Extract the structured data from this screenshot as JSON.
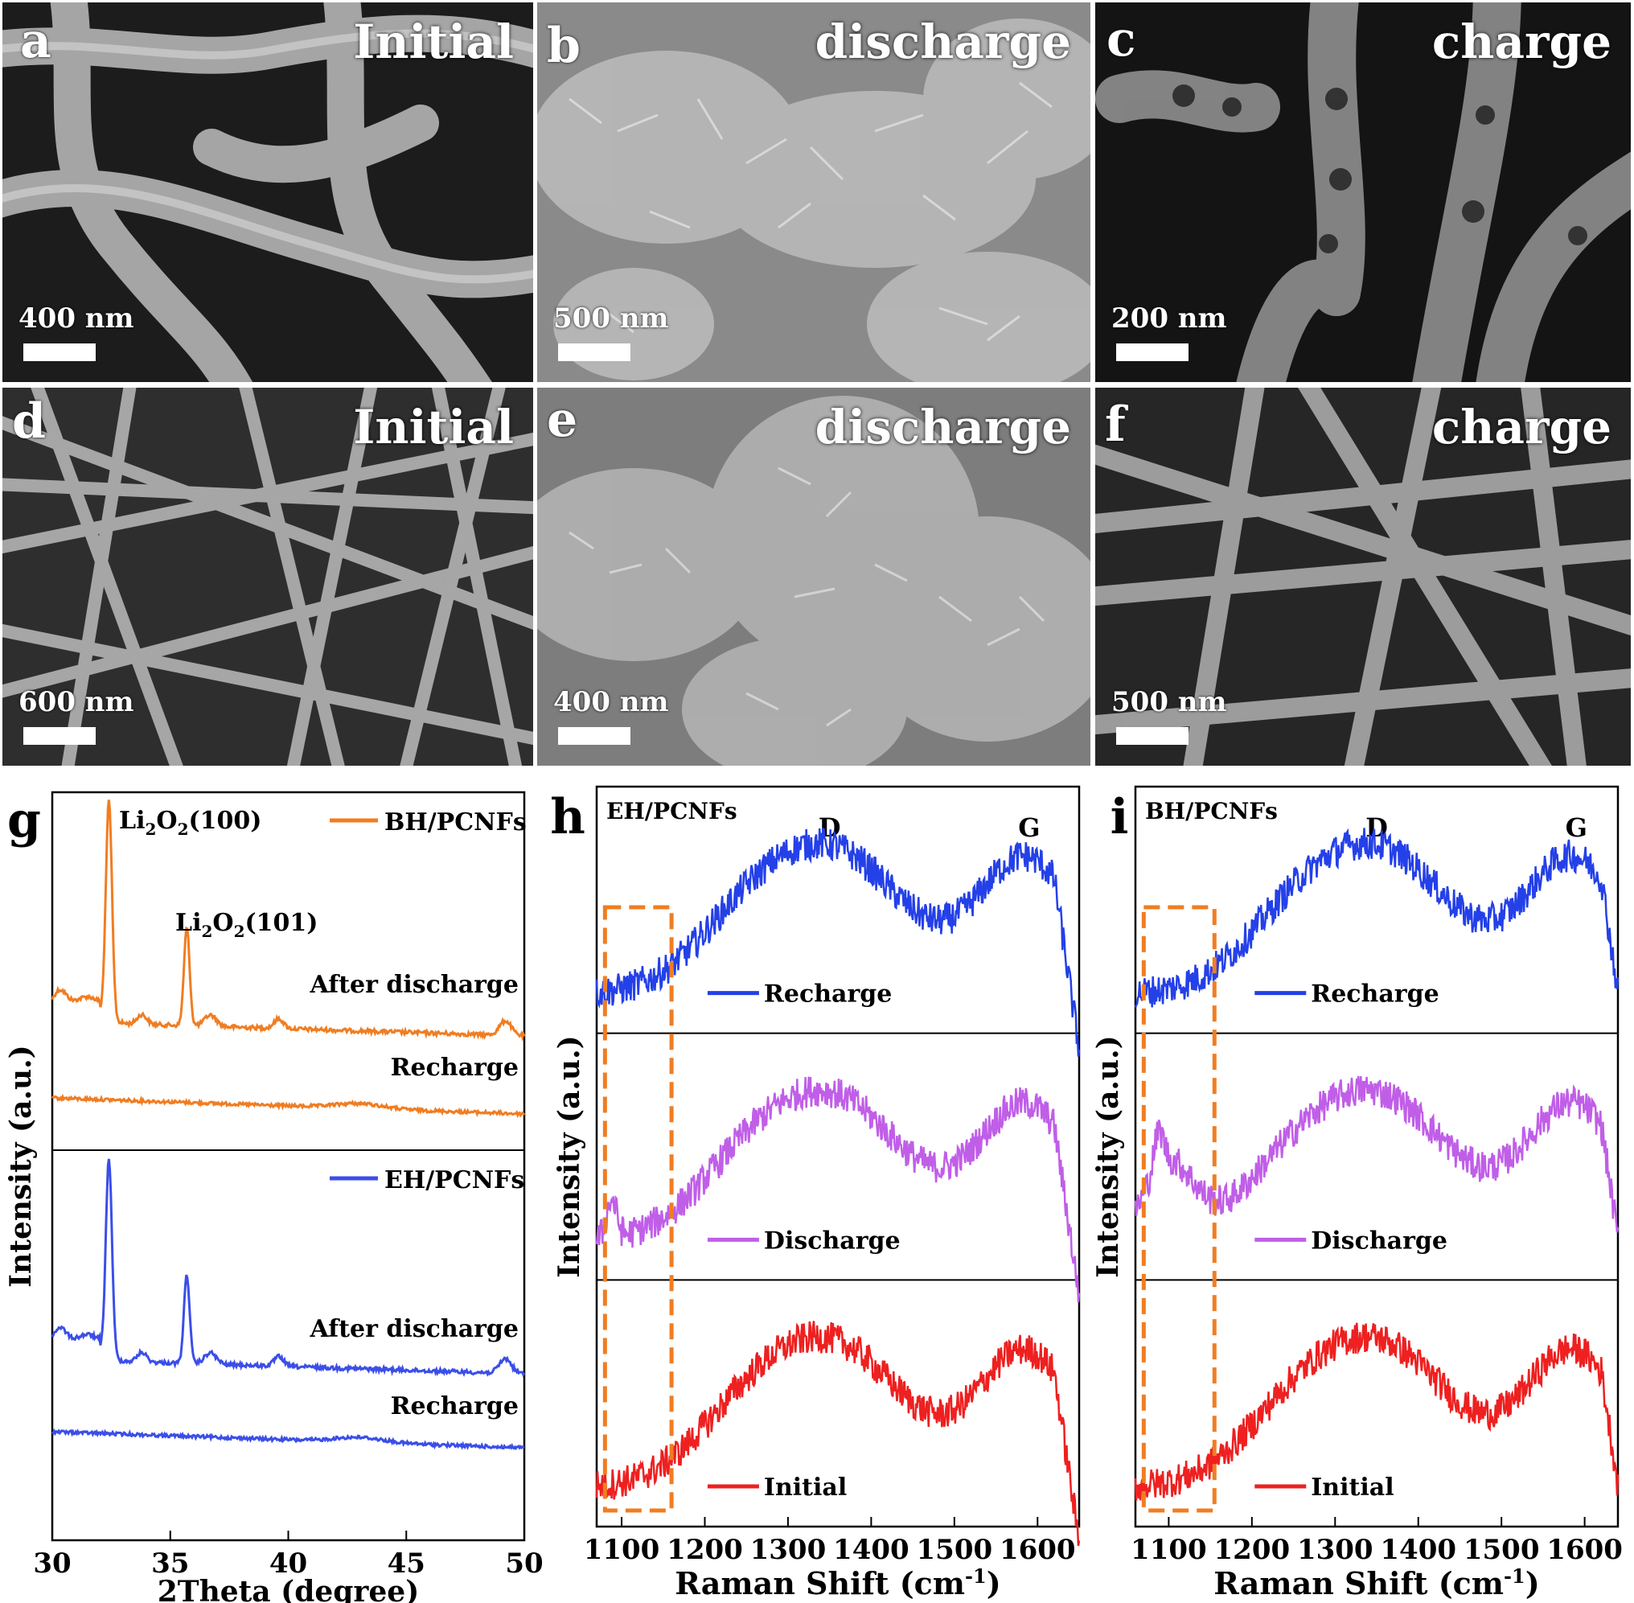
{
  "sem_panels": [
    {
      "letter": "a",
      "condition": "Initial",
      "scale": "400 nm"
    },
    {
      "letter": "b",
      "condition": "discharge",
      "scale": "500 nm"
    },
    {
      "letter": "c",
      "condition": "charge",
      "scale": "200 nm"
    },
    {
      "letter": "d",
      "condition": "Initial",
      "scale": "600 nm"
    },
    {
      "letter": "e",
      "condition": "discharge",
      "scale": "400 nm"
    },
    {
      "letter": "f",
      "condition": "charge",
      "scale": "500 nm"
    }
  ],
  "chart_data": [
    {
      "panel": "g",
      "type": "line",
      "xlabel": "2Theta (degree)",
      "ylabel": "Intensity (a.u.)",
      "xlim": [
        30,
        50
      ],
      "xticks": [
        30,
        35,
        40,
        45,
        50
      ],
      "subpanels": [
        {
          "legend": "BH/PCNFs",
          "color": "#f07d22",
          "curves": [
            {
              "label": "After discharge",
              "peaks": [
                {
                  "x": 32.4,
                  "label": "Li2O2(100)"
                },
                {
                  "x": 35.7,
                  "label": "Li2O2(101)"
                }
              ]
            },
            {
              "label": "Recharge",
              "peaks": []
            }
          ]
        },
        {
          "legend": "EH/PCNFs",
          "color": "#3b4ee8",
          "curves": [
            {
              "label": "After discharge",
              "peaks": [
                {
                  "x": 32.4
                },
                {
                  "x": 35.6
                }
              ]
            },
            {
              "label": "Recharge",
              "peaks": []
            }
          ]
        }
      ],
      "peak_labels": [
        {
          "main": "Li",
          "sub": "2",
          "mid": "O",
          "sub2": "2",
          "tail": "(100)"
        },
        {
          "main": "Li",
          "sub": "2",
          "mid": "O",
          "sub2": "2",
          "tail": "(101)"
        }
      ]
    },
    {
      "panel": "h",
      "type": "line",
      "title": "EH/PCNFs",
      "xlabel": "Raman Shift (cm",
      "xlabel_sup": "-1",
      "xlabel_end": ")",
      "ylabel": "Intensity (a.u.)",
      "xlim": [
        1070,
        1650
      ],
      "xticks": [
        1100,
        1200,
        1300,
        1400,
        1500,
        1600
      ],
      "bands": [
        {
          "label": "D",
          "x": 1350
        },
        {
          "label": "G",
          "x": 1590
        }
      ],
      "highlight_range": [
        1080,
        1160
      ],
      "series": [
        {
          "name": "Recharge",
          "color": "#2440e8"
        },
        {
          "name": "Discharge",
          "color": "#c05ee8"
        },
        {
          "name": "Initial",
          "color": "#ee2020"
        }
      ]
    },
    {
      "panel": "i",
      "type": "line",
      "title": "BH/PCNFs",
      "xlabel": "Raman Shift (cm",
      "xlabel_sup": "-1",
      "xlabel_end": ")",
      "ylabel": "Intensity (a.u.)",
      "xlim": [
        1060,
        1640
      ],
      "xticks": [
        1100,
        1200,
        1300,
        1400,
        1500,
        1600
      ],
      "bands": [
        {
          "label": "D",
          "x": 1350
        },
        {
          "label": "G",
          "x": 1590
        }
      ],
      "highlight_range": [
        1070,
        1155
      ],
      "series": [
        {
          "name": "Recharge",
          "color": "#2440e8"
        },
        {
          "name": "Discharge",
          "color": "#c05ee8"
        },
        {
          "name": "Initial",
          "color": "#ee2020"
        }
      ]
    }
  ]
}
